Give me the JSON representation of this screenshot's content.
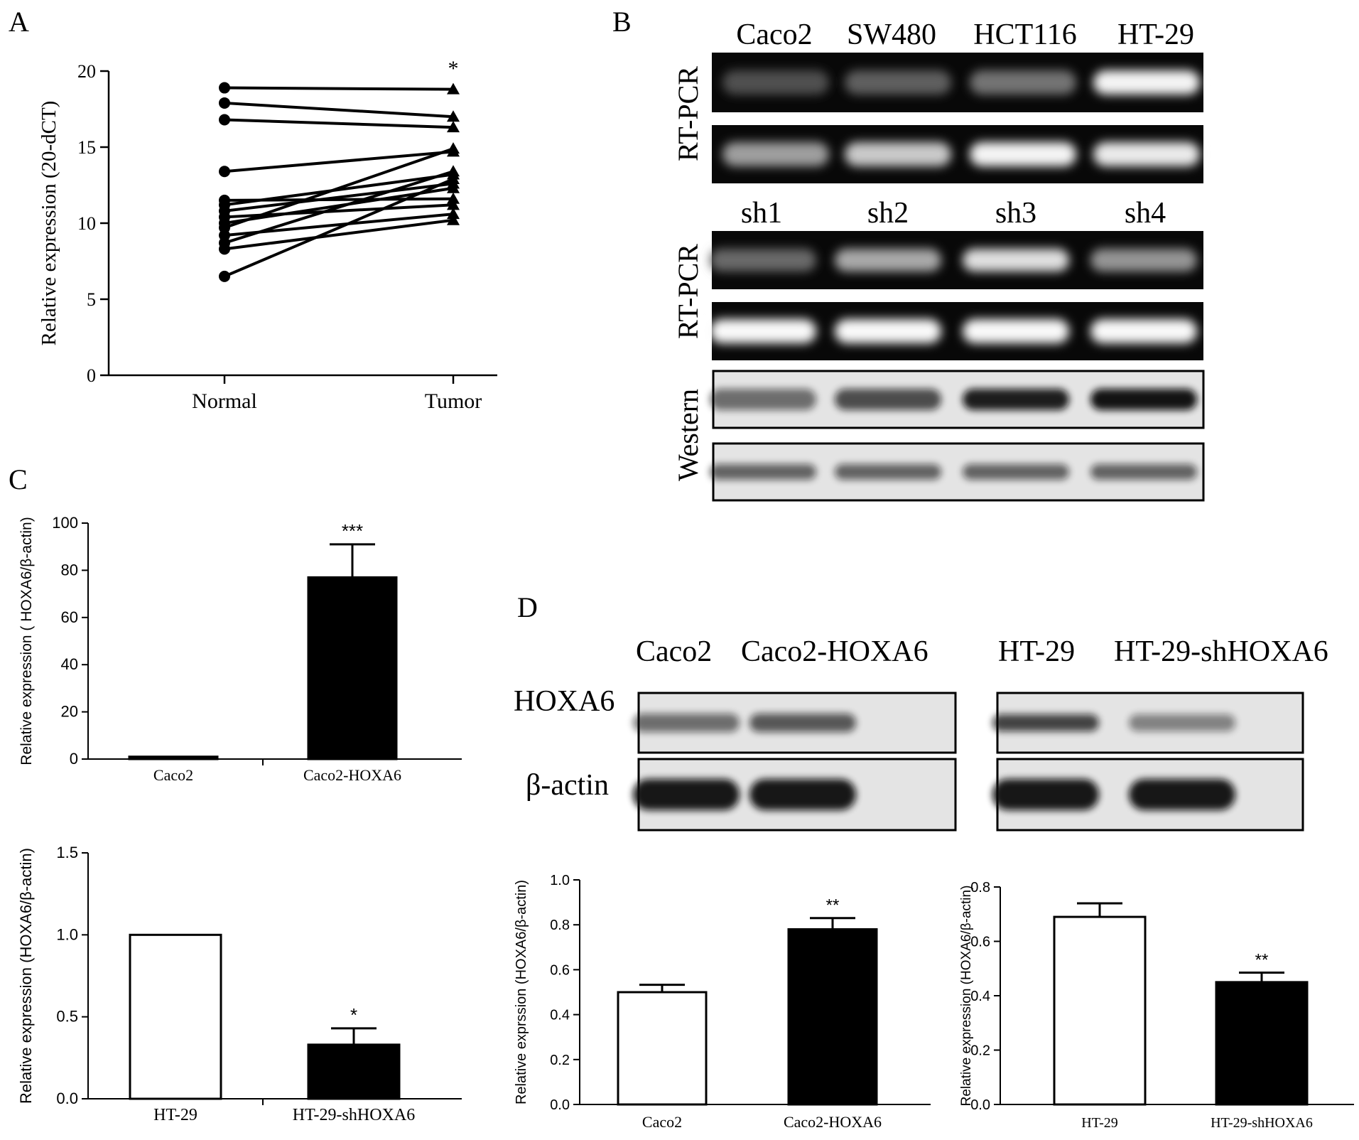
{
  "panel_labels": {
    "a": "A",
    "b": "B",
    "c": "C",
    "d": "D"
  },
  "panel_b": {
    "row1_lanes": [
      "Caco2",
      "SW480",
      "HCT116",
      "HT-29"
    ],
    "row2_lanes": [
      "sh1",
      "sh2",
      "sh3",
      "sh4"
    ],
    "side_labels": [
      "RT-PCR",
      "RT-PCR",
      "Western"
    ],
    "gel1_band_intensity": [
      0.18,
      0.25,
      0.35,
      0.95
    ],
    "gel2_band_intensity": [
      0.55,
      0.75,
      0.95,
      0.9
    ],
    "gel3_band_intensity": [
      0.3,
      0.6,
      0.85,
      0.5
    ],
    "gel4_band_intensity": [
      0.97,
      0.97,
      0.97,
      0.97
    ],
    "western1_band_intensity": [
      0.55,
      0.7,
      0.92,
      0.97
    ],
    "western2_band_intensity": [
      0.6,
      0.6,
      0.6,
      0.6
    ]
  },
  "panel_d_blots": {
    "left_lanes": [
      "Caco2",
      "Caco2-HOXA6"
    ],
    "right_lanes": [
      "HT-29",
      "HT-29-shHOXA6"
    ],
    "row_labels": [
      "HOXA6",
      "β-actin"
    ],
    "hoxa6_left_intensity": [
      0.55,
      0.65
    ],
    "hoxa6_right_intensity": [
      0.75,
      0.45
    ],
    "actin_left_intensity": [
      0.95,
      0.95
    ],
    "actin_right_intensity": [
      0.95,
      0.95
    ]
  },
  "chart_data": [
    {
      "id": "A",
      "type": "line",
      "ylabel": "Relative expression (20-dCT)",
      "categories": [
        "Normal",
        "Tumor"
      ],
      "ylim": [
        0,
        20
      ],
      "yticks": [
        "0",
        "5",
        "10",
        "15",
        "20"
      ],
      "pairs": [
        [
          18.9,
          18.8
        ],
        [
          17.9,
          17.0
        ],
        [
          16.8,
          16.3
        ],
        [
          13.4,
          14.7
        ],
        [
          11.5,
          11.6
        ],
        [
          11.2,
          13.2
        ],
        [
          10.8,
          12.6
        ],
        [
          10.4,
          11.2
        ],
        [
          10.0,
          12.3
        ],
        [
          9.7,
          14.9
        ],
        [
          9.2,
          10.6
        ],
        [
          8.7,
          13.4
        ],
        [
          8.3,
          10.2
        ],
        [
          6.5,
          12.9
        ]
      ],
      "annotation": "*"
    },
    {
      "id": "C-top",
      "type": "bar",
      "ylabel": "Relative expression ( HOXA6/β-actin)",
      "categories": [
        "Caco2",
        "Caco2-HOXA6"
      ],
      "values": [
        1,
        77
      ],
      "errors": [
        0,
        14
      ],
      "fill": [
        "#000000",
        "#000000"
      ],
      "ylim": [
        0,
        100
      ],
      "yticks": [
        "0",
        "20",
        "40",
        "60",
        "80",
        "100"
      ],
      "annotations": [
        "",
        "***"
      ]
    },
    {
      "id": "C-bottom",
      "type": "bar",
      "ylabel": "Relative expression (HOXA6/β-actin)",
      "categories": [
        "HT-29",
        "HT-29-shHOXA6"
      ],
      "values": [
        1.0,
        0.33
      ],
      "errors": [
        0,
        0.1
      ],
      "fill": [
        "#ffffff",
        "#000000"
      ],
      "ylim": [
        0,
        1.5
      ],
      "yticks": [
        "0.0",
        "0.5",
        "1.0",
        "1.5"
      ],
      "annotations": [
        "",
        "*"
      ]
    },
    {
      "id": "D-left",
      "type": "bar",
      "ylabel": "Relative exprssion (HOXA6/β-actin)",
      "categories": [
        "Caco2",
        "Caco2-HOXA6"
      ],
      "values": [
        0.5,
        0.78
      ],
      "errors": [
        0.033,
        0.05
      ],
      "fill": [
        "#ffffff",
        "#000000"
      ],
      "ylim": [
        0,
        1.0
      ],
      "yticks": [
        "0.0",
        "0.2",
        "0.4",
        "0.6",
        "0.8",
        "1.0"
      ],
      "annotations": [
        "",
        "**"
      ]
    },
    {
      "id": "D-right",
      "type": "bar",
      "ylabel": "Relative expression  (HOXA6/β-actin)",
      "categories": [
        "HT-29",
        "HT-29-shHOXA6"
      ],
      "values": [
        0.69,
        0.45
      ],
      "errors": [
        0.05,
        0.035
      ],
      "fill": [
        "#ffffff",
        "#000000"
      ],
      "ylim": [
        0,
        0.8
      ],
      "yticks": [
        "0.0",
        "0.2",
        "0.4",
        "0.6",
        "0.8"
      ],
      "annotations": [
        "",
        "**"
      ]
    }
  ]
}
